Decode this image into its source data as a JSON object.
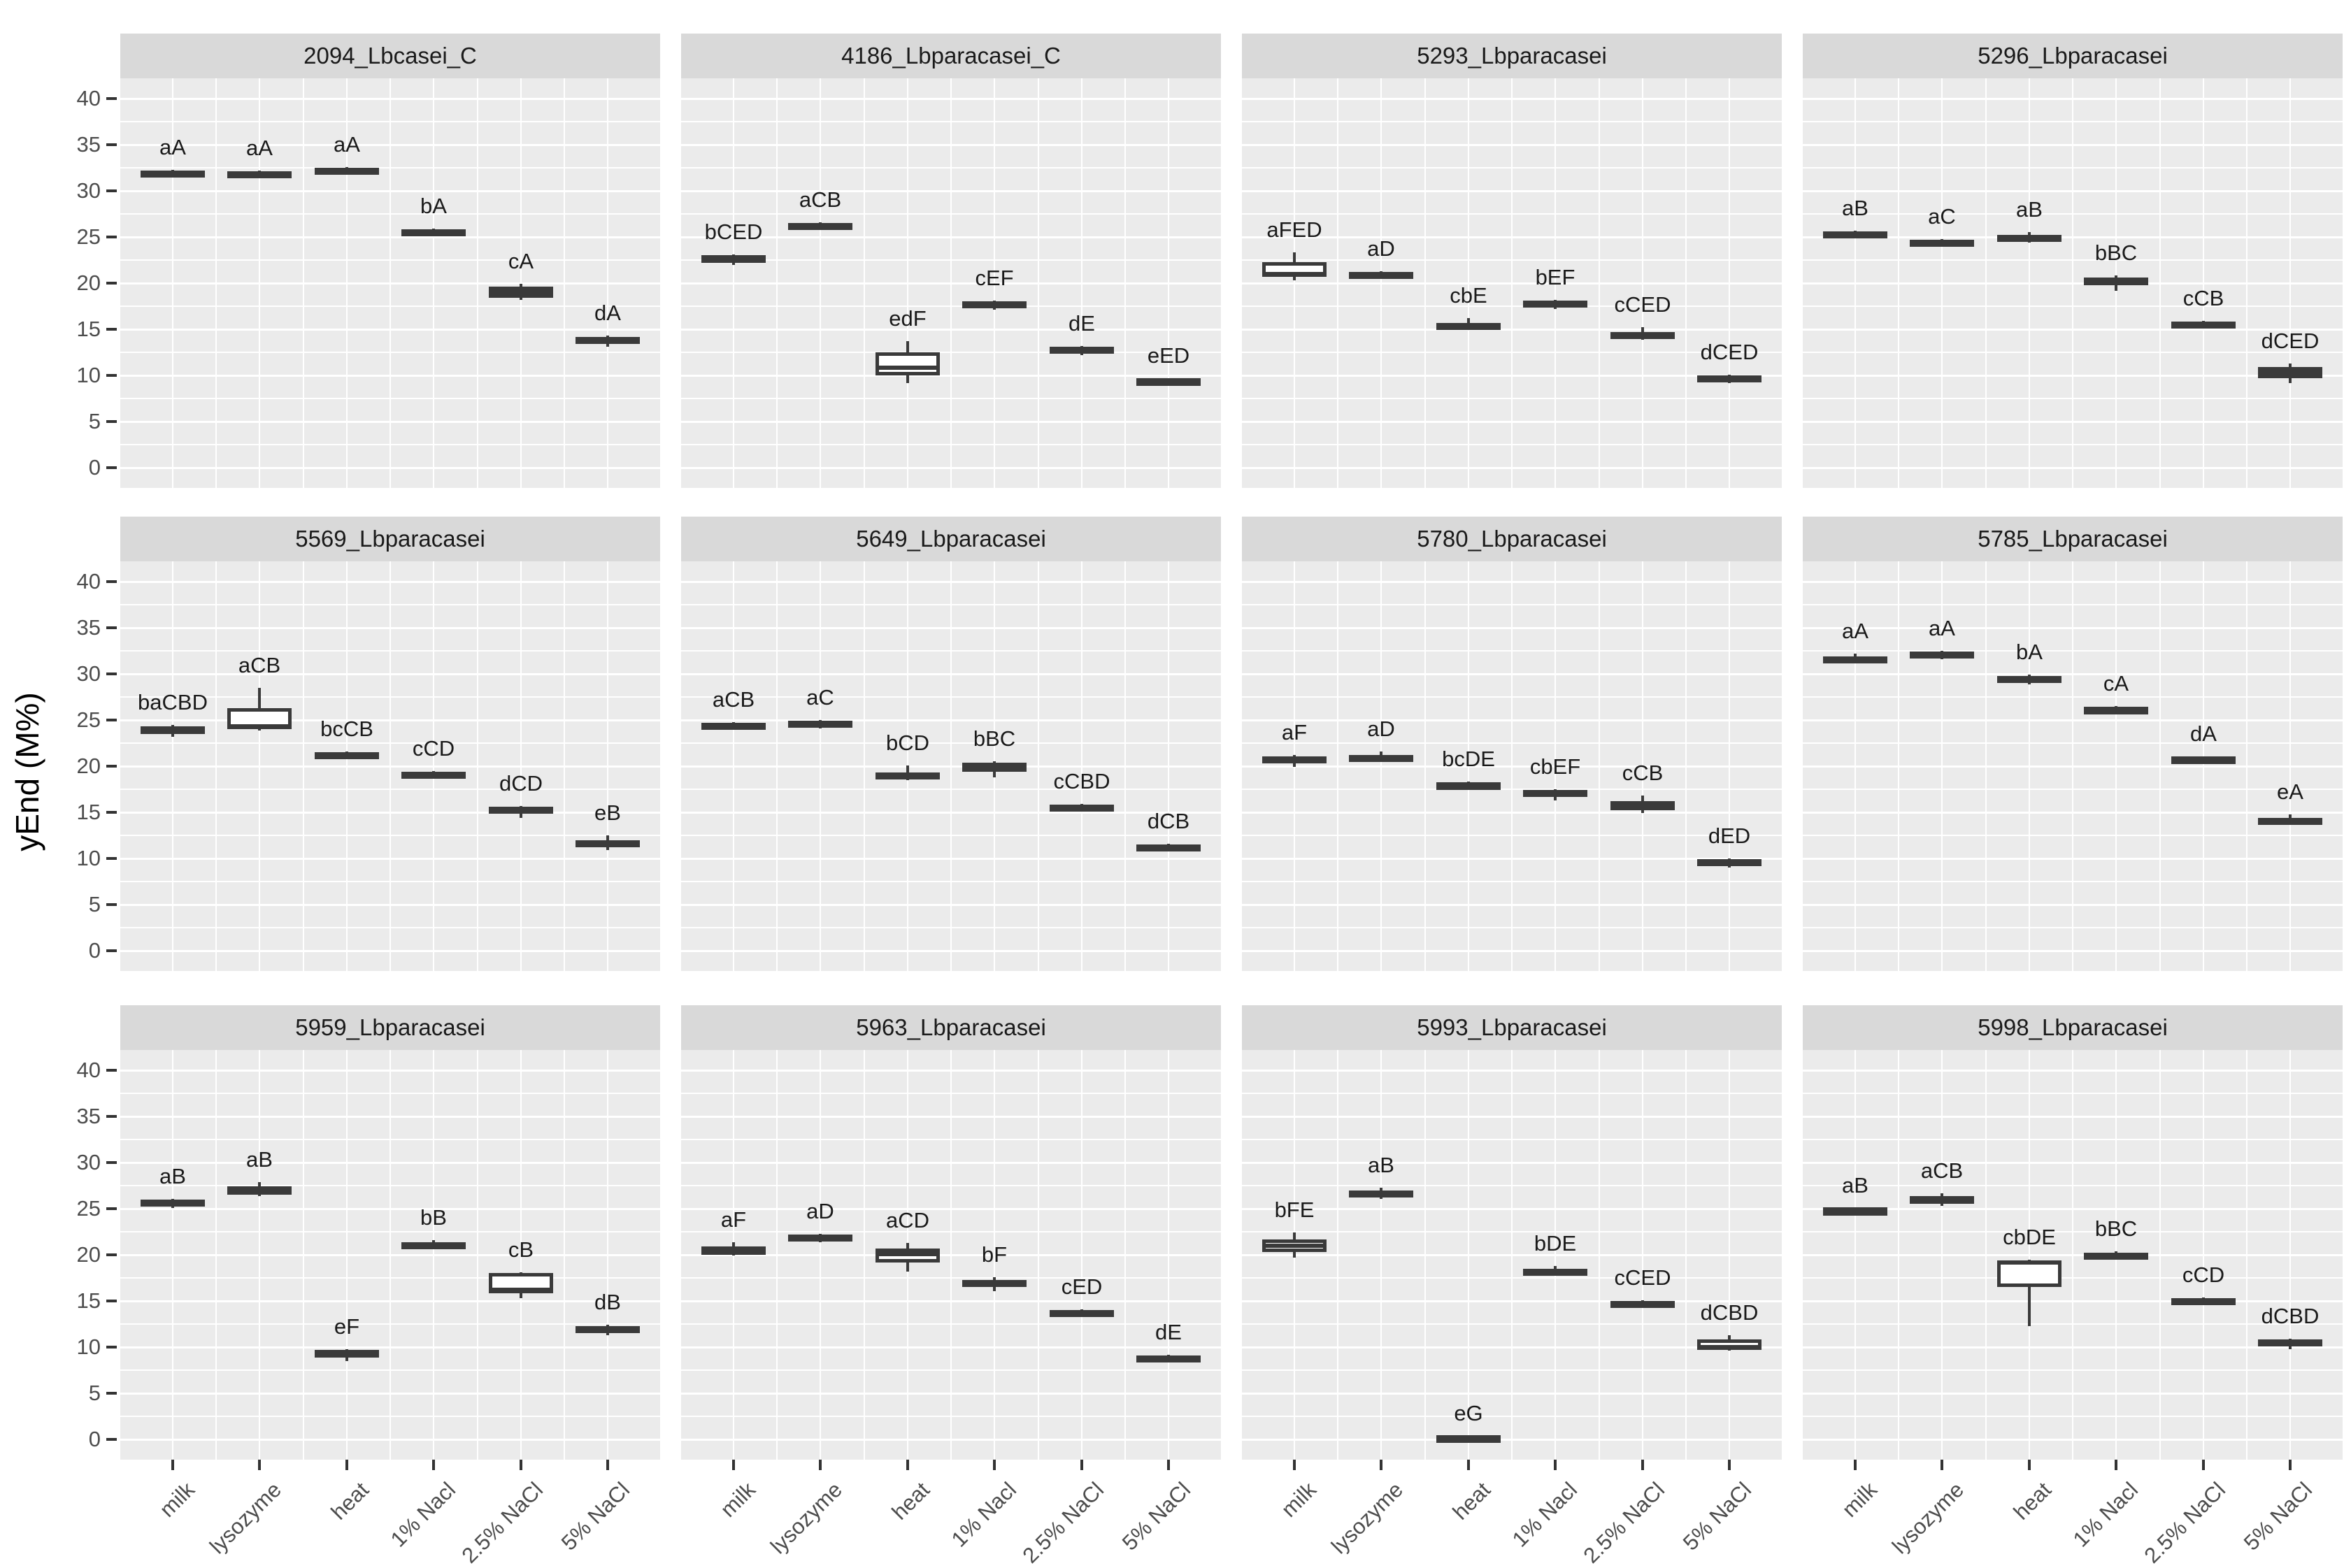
{
  "chart_data": {
    "type": "boxplot",
    "title": "",
    "xlabel": "",
    "ylabel": "yEnd (M%)",
    "ylim": [
      0,
      40
    ],
    "yticks": [
      0,
      5,
      10,
      15,
      20,
      25,
      30,
      35,
      40
    ],
    "grid": "white major gridlines every 5 units and minor every 2.5 units on grey panels; vertical gridlines at and between categories",
    "legend": "none",
    "facet_layout": {
      "rows": 3,
      "cols": 4
    },
    "categories": [
      "milk",
      "lysozyme",
      "heat",
      "1% Nacl",
      "2.5% NaCl",
      "5% NaCl"
    ],
    "facets": [
      {
        "title": "2094_Lbcasei_C",
        "boxes": [
          {
            "label": "aA",
            "lo": 31.7,
            "q1": 31.8,
            "med": 32.0,
            "q3": 32.2,
            "hi": 32.3
          },
          {
            "label": "aA",
            "lo": 31.6,
            "q1": 31.7,
            "med": 31.9,
            "q3": 32.1,
            "hi": 32.2
          },
          {
            "label": "aA",
            "lo": 31.8,
            "q1": 31.9,
            "med": 32.2,
            "q3": 32.5,
            "hi": 32.6
          },
          {
            "label": "bA",
            "lo": 25.1,
            "q1": 25.2,
            "med": 25.5,
            "q3": 25.8,
            "hi": 25.9
          },
          {
            "label": "cA",
            "lo": 18.2,
            "q1": 18.4,
            "med": 19.0,
            "q3": 19.6,
            "hi": 19.9
          },
          {
            "label": "dA",
            "lo": 13.1,
            "q1": 13.5,
            "med": 13.8,
            "q3": 14.2,
            "hi": 14.3
          }
        ]
      },
      {
        "title": "4186_Lbparacasei_C",
        "boxes": [
          {
            "label": "bCED",
            "lo": 22.0,
            "q1": 22.2,
            "med": 22.6,
            "q3": 23.0,
            "hi": 23.1
          },
          {
            "label": "aCB",
            "lo": 26.0,
            "q1": 26.1,
            "med": 26.3,
            "q3": 26.5,
            "hi": 26.6
          },
          {
            "label": "edF",
            "lo": 9.2,
            "q1": 10.0,
            "med": 10.8,
            "q3": 12.5,
            "hi": 13.7
          },
          {
            "label": "cEF",
            "lo": 17.1,
            "q1": 17.5,
            "med": 17.8,
            "q3": 18.0,
            "hi": 18.1
          },
          {
            "label": "dE",
            "lo": 12.2,
            "q1": 12.6,
            "med": 12.8,
            "q3": 13.1,
            "hi": 13.2
          },
          {
            "label": "eED",
            "lo": 9.2,
            "q1": 9.3,
            "med": 9.45,
            "q3": 9.6,
            "hi": 9.7
          }
        ]
      },
      {
        "title": "5293_Lbparacasei",
        "boxes": [
          {
            "label": "aFED",
            "lo": 20.3,
            "q1": 20.7,
            "med": 21.0,
            "q3": 22.3,
            "hi": 23.3
          },
          {
            "label": "aD",
            "lo": 20.7,
            "q1": 20.8,
            "med": 21.0,
            "q3": 21.2,
            "hi": 21.3
          },
          {
            "label": "cbE",
            "lo": 14.9,
            "q1": 15.0,
            "med": 15.4,
            "q3": 15.7,
            "hi": 16.2
          },
          {
            "label": "bEF",
            "lo": 17.2,
            "q1": 17.5,
            "med": 17.7,
            "q3": 18.1,
            "hi": 18.2
          },
          {
            "label": "cCED",
            "lo": 13.9,
            "q1": 14.0,
            "med": 14.3,
            "q3": 14.7,
            "hi": 15.2
          },
          {
            "label": "dCED",
            "lo": 9.2,
            "q1": 9.5,
            "med": 9.8,
            "q3": 10.0,
            "hi": 10.1
          }
        ]
      },
      {
        "title": "5296_Lbparacasei",
        "boxes": [
          {
            "label": "aB",
            "lo": 24.9,
            "q1": 25.1,
            "med": 25.3,
            "q3": 25.6,
            "hi": 25.7
          },
          {
            "label": "aC",
            "lo": 24.2,
            "q1": 24.3,
            "med": 24.5,
            "q3": 24.7,
            "hi": 24.8
          },
          {
            "label": "aB",
            "lo": 24.4,
            "q1": 24.6,
            "med": 24.9,
            "q3": 25.2,
            "hi": 25.5
          },
          {
            "label": "bBC",
            "lo": 19.2,
            "q1": 19.8,
            "med": 20.1,
            "q3": 20.6,
            "hi": 20.8
          },
          {
            "label": "cCB",
            "lo": 15.3,
            "q1": 15.4,
            "med": 15.6,
            "q3": 15.8,
            "hi": 15.9
          },
          {
            "label": "dCED",
            "lo": 9.2,
            "q1": 9.7,
            "med": 10.3,
            "q3": 10.9,
            "hi": 11.3
          }
        ]
      },
      {
        "title": "5569_Lbparacasei",
        "boxes": [
          {
            "label": "baCBD",
            "lo": 23.2,
            "q1": 23.5,
            "med": 23.9,
            "q3": 24.3,
            "hi": 24.5
          },
          {
            "label": "aCB",
            "lo": 23.9,
            "q1": 24.0,
            "med": 24.3,
            "q3": 26.3,
            "hi": 28.5
          },
          {
            "label": "bcCB",
            "lo": 21.0,
            "q1": 21.1,
            "med": 21.3,
            "q3": 21.5,
            "hi": 21.6
          },
          {
            "label": "cCD",
            "lo": 18.9,
            "q1": 19.0,
            "med": 19.2,
            "q3": 19.4,
            "hi": 19.5
          },
          {
            "label": "dCD",
            "lo": 14.4,
            "q1": 14.9,
            "med": 15.2,
            "q3": 15.6,
            "hi": 15.7
          },
          {
            "label": "eB",
            "lo": 10.9,
            "q1": 11.2,
            "med": 11.7,
            "q3": 12.0,
            "hi": 12.5
          }
        ]
      },
      {
        "title": "5649_Lbparacasei",
        "boxes": [
          {
            "label": "aCB",
            "lo": 24.2,
            "q1": 24.3,
            "med": 24.5,
            "q3": 24.7,
            "hi": 24.8
          },
          {
            "label": "aC",
            "lo": 24.1,
            "q1": 24.2,
            "med": 24.6,
            "q3": 24.9,
            "hi": 25.0
          },
          {
            "label": "bCD",
            "lo": 18.5,
            "q1": 18.6,
            "med": 19.0,
            "q3": 19.3,
            "hi": 20.1
          },
          {
            "label": "bBC",
            "lo": 18.8,
            "q1": 19.4,
            "med": 19.9,
            "q3": 20.4,
            "hi": 20.5
          },
          {
            "label": "cCBD",
            "lo": 15.3,
            "q1": 15.4,
            "med": 15.6,
            "q3": 15.8,
            "hi": 15.9
          },
          {
            "label": "dCB",
            "lo": 11.0,
            "q1": 11.1,
            "med": 11.3,
            "q3": 11.5,
            "hi": 11.6
          }
        ]
      },
      {
        "title": "5780_Lbparacasei",
        "boxes": [
          {
            "label": "aF",
            "lo": 19.9,
            "q1": 20.4,
            "med": 20.7,
            "q3": 21.1,
            "hi": 21.2
          },
          {
            "label": "aD",
            "lo": 20.5,
            "q1": 20.6,
            "med": 20.9,
            "q3": 21.2,
            "hi": 21.6
          },
          {
            "label": "bcDE",
            "lo": 17.7,
            "q1": 17.8,
            "med": 18.0,
            "q3": 18.2,
            "hi": 18.3
          },
          {
            "label": "cbEF",
            "lo": 16.3,
            "q1": 16.7,
            "med": 17.0,
            "q3": 17.4,
            "hi": 17.5
          },
          {
            "label": "cCB",
            "lo": 14.9,
            "q1": 15.2,
            "med": 15.7,
            "q3": 16.2,
            "hi": 16.8
          },
          {
            "label": "dED",
            "lo": 9.0,
            "q1": 9.4,
            "med": 9.6,
            "q3": 9.9,
            "hi": 10.0
          }
        ]
      },
      {
        "title": "5785_Lbparacasei",
        "boxes": [
          {
            "label": "aA",
            "lo": 31.2,
            "q1": 31.3,
            "med": 31.7,
            "q3": 31.9,
            "hi": 32.2
          },
          {
            "label": "aA",
            "lo": 31.6,
            "q1": 31.9,
            "med": 32.1,
            "q3": 32.4,
            "hi": 32.5
          },
          {
            "label": "bA",
            "lo": 28.9,
            "q1": 29.2,
            "med": 29.5,
            "q3": 29.8,
            "hi": 29.9
          },
          {
            "label": "cA",
            "lo": 25.9,
            "q1": 26.0,
            "med": 26.2,
            "q3": 26.4,
            "hi": 26.5
          },
          {
            "label": "dA",
            "lo": 20.5,
            "q1": 20.6,
            "med": 20.8,
            "q3": 21.0,
            "hi": 21.1
          },
          {
            "label": "eA",
            "lo": 13.7,
            "q1": 13.8,
            "med": 14.1,
            "q3": 14.4,
            "hi": 14.8
          }
        ]
      },
      {
        "title": "5959_Lbparacasei",
        "boxes": [
          {
            "label": "aB",
            "lo": 25.1,
            "q1": 25.4,
            "med": 25.7,
            "q3": 26.0,
            "hi": 26.1
          },
          {
            "label": "aB",
            "lo": 26.4,
            "q1": 26.5,
            "med": 27.0,
            "q3": 27.4,
            "hi": 27.9
          },
          {
            "label": "eF",
            "lo": 8.5,
            "q1": 8.9,
            "med": 9.3,
            "q3": 9.7,
            "hi": 9.8
          },
          {
            "label": "bB",
            "lo": 20.8,
            "q1": 20.9,
            "med": 21.1,
            "q3": 21.4,
            "hi": 21.6
          },
          {
            "label": "cB",
            "lo": 15.3,
            "q1": 15.8,
            "med": 16.2,
            "q3": 18.0,
            "hi": 18.1
          },
          {
            "label": "dB",
            "lo": 11.3,
            "q1": 11.7,
            "med": 12.0,
            "q3": 12.3,
            "hi": 12.4
          }
        ]
      },
      {
        "title": "5963_Lbparacasei",
        "boxes": [
          {
            "label": "aF",
            "lo": 19.9,
            "q1": 20.0,
            "med": 20.5,
            "q3": 20.9,
            "hi": 21.4
          },
          {
            "label": "aD",
            "lo": 21.4,
            "q1": 21.5,
            "med": 21.8,
            "q3": 22.2,
            "hi": 22.3
          },
          {
            "label": "aCD",
            "lo": 18.2,
            "q1": 19.2,
            "med": 20.1,
            "q3": 20.7,
            "hi": 21.3
          },
          {
            "label": "bF",
            "lo": 16.1,
            "q1": 16.5,
            "med": 16.9,
            "q3": 17.3,
            "hi": 17.6
          },
          {
            "label": "cED",
            "lo": 13.4,
            "q1": 13.5,
            "med": 13.7,
            "q3": 14.0,
            "hi": 14.1
          },
          {
            "label": "dE",
            "lo": 8.7,
            "q1": 8.8,
            "med": 8.9,
            "q3": 9.1,
            "hi": 9.2
          }
        ]
      },
      {
        "title": "5993_Lbparacasei",
        "boxes": [
          {
            "label": "bFE",
            "lo": 19.7,
            "q1": 20.3,
            "med": 21.0,
            "q3": 21.7,
            "hi": 22.4
          },
          {
            "label": "aB",
            "lo": 26.1,
            "q1": 26.4,
            "med": 26.7,
            "q3": 27.0,
            "hi": 27.3
          },
          {
            "label": "eG",
            "lo": 0.1,
            "q1": 0.1,
            "med": 0.2,
            "q3": 0.35,
            "hi": 0.4
          },
          {
            "label": "bDE",
            "lo": 17.8,
            "q1": 17.9,
            "med": 18.2,
            "q3": 18.5,
            "hi": 18.8
          },
          {
            "label": "cCED",
            "lo": 14.5,
            "q1": 14.6,
            "med": 14.8,
            "q3": 15.0,
            "hi": 15.1
          },
          {
            "label": "dCBD",
            "lo": 9.6,
            "q1": 9.7,
            "med": 10.0,
            "q3": 10.8,
            "hi": 11.3
          }
        ]
      },
      {
        "title": "5998_Lbparacasei",
        "boxes": [
          {
            "label": "aB",
            "lo": 24.6,
            "q1": 24.7,
            "med": 24.9,
            "q3": 25.0,
            "hi": 25.1
          },
          {
            "label": "aCB",
            "lo": 25.3,
            "q1": 25.5,
            "med": 25.9,
            "q3": 26.4,
            "hi": 26.7
          },
          {
            "label": "cbDE",
            "lo": 12.3,
            "q1": 16.5,
            "med": 19.2,
            "q3": 19.4,
            "hi": 19.5
          },
          {
            "label": "bBC",
            "lo": 19.5,
            "q1": 19.6,
            "med": 19.9,
            "q3": 20.2,
            "hi": 20.4
          },
          {
            "label": "cCD",
            "lo": 14.9,
            "q1": 15.0,
            "med": 15.1,
            "q3": 15.3,
            "hi": 15.4
          },
          {
            "label": "dCBD",
            "lo": 9.8,
            "q1": 10.1,
            "med": 10.4,
            "q3": 10.8,
            "hi": 10.9
          }
        ]
      }
    ]
  },
  "colors": {
    "panel_bg": "#EBEBEB",
    "strip_bg": "#D9D9D9",
    "gridline": "#FFFFFF",
    "box_stroke": "#3A3A3A",
    "tick_text": "#4D4D4D",
    "label_text": "#1A1A1A"
  }
}
